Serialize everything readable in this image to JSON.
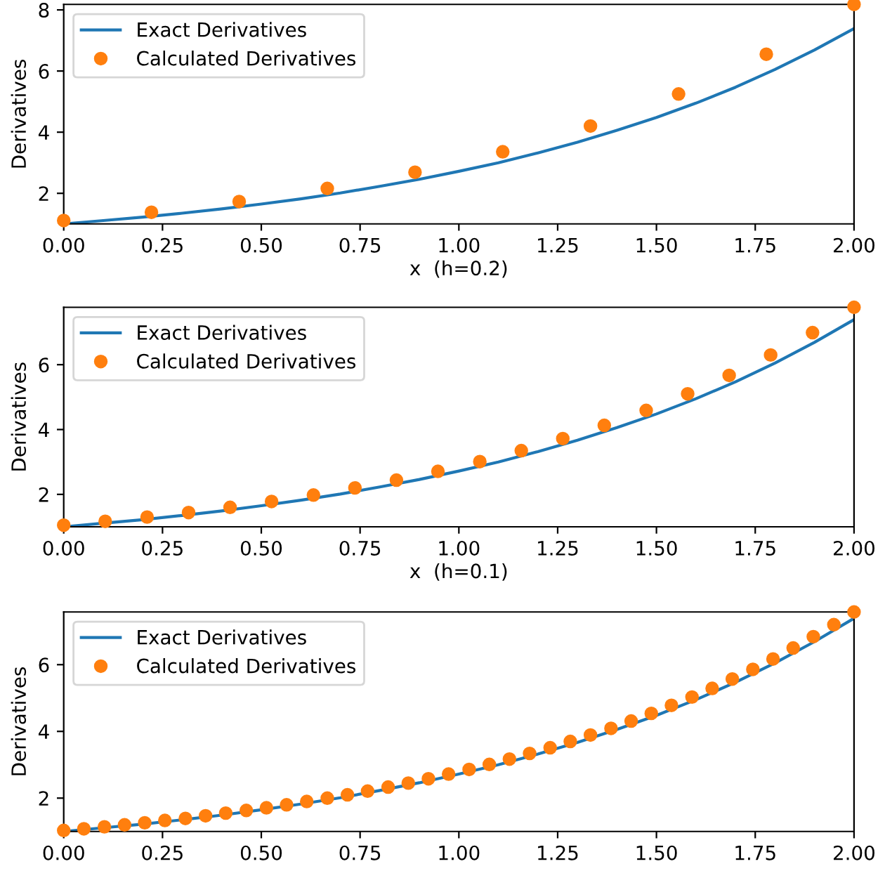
{
  "chart_data": [
    {
      "type": "line",
      "xlabel": "x  (h=0.2)",
      "ylabel": "Derivatives",
      "xlim": [
        0,
        2
      ],
      "ylim": [
        1,
        8.18
      ],
      "xticks": [
        {
          "value": 0,
          "label": "0.00"
        },
        {
          "value": 0.25,
          "label": "0.25"
        },
        {
          "value": 0.5,
          "label": "0.50"
        },
        {
          "value": 0.75,
          "label": "0.75"
        },
        {
          "value": 1,
          "label": "1.00"
        },
        {
          "value": 1.25,
          "label": "1.25"
        },
        {
          "value": 1.5,
          "label": "1.50"
        },
        {
          "value": 1.75,
          "label": "1.75"
        },
        {
          "value": 2,
          "label": "2.00"
        }
      ],
      "yticks": [
        2,
        4,
        6,
        8
      ],
      "legend": "top left",
      "grid": false,
      "series": [
        {
          "name": "Exact Derivatives",
          "color": "#1f77b4",
          "marker": "none",
          "x": [
            0,
            0.1,
            0.2,
            0.3,
            0.4,
            0.5,
            0.6,
            0.7,
            0.8,
            0.9,
            1.0,
            1.1,
            1.2,
            1.3,
            1.4,
            1.5,
            1.6,
            1.7,
            1.8,
            1.9,
            2.0
          ],
          "values": [
            1,
            1.11,
            1.22,
            1.35,
            1.49,
            1.65,
            1.82,
            2.01,
            2.23,
            2.46,
            2.72,
            3.0,
            3.32,
            3.67,
            4.06,
            4.48,
            4.95,
            5.47,
            6.05,
            6.69,
            7.39
          ]
        },
        {
          "name": "Calculated Derivatives",
          "type": "scatter",
          "color": "#ff7f0e",
          "marker": "circle",
          "x": [
            0,
            0.222,
            0.444,
            0.667,
            0.889,
            1.111,
            1.333,
            1.556,
            1.778,
            2.0
          ],
          "values": [
            1.11,
            1.38,
            1.73,
            2.16,
            2.69,
            3.36,
            4.2,
            5.25,
            6.55,
            8.18
          ]
        }
      ]
    },
    {
      "type": "line",
      "xlabel": "x  (h=0.1)",
      "ylabel": "Derivatives",
      "xlim": [
        0,
        2
      ],
      "ylim": [
        1,
        7.77
      ],
      "xticks": [
        {
          "value": 0,
          "label": "0.00"
        },
        {
          "value": 0.25,
          "label": "0.25"
        },
        {
          "value": 0.5,
          "label": "0.50"
        },
        {
          "value": 0.75,
          "label": "0.75"
        },
        {
          "value": 1,
          "label": "1.00"
        },
        {
          "value": 1.25,
          "label": "1.25"
        },
        {
          "value": 1.5,
          "label": "1.50"
        },
        {
          "value": 1.75,
          "label": "1.75"
        },
        {
          "value": 2,
          "label": "2.00"
        }
      ],
      "yticks": [
        2,
        4,
        6
      ],
      "legend": "top left",
      "grid": false,
      "series": [
        {
          "name": "Exact Derivatives",
          "color": "#1f77b4",
          "marker": "none",
          "x": [
            0,
            0.1,
            0.2,
            0.3,
            0.4,
            0.5,
            0.6,
            0.7,
            0.8,
            0.9,
            1.0,
            1.1,
            1.2,
            1.3,
            1.4,
            1.5,
            1.6,
            1.7,
            1.8,
            1.9,
            2.0
          ],
          "values": [
            1,
            1.11,
            1.22,
            1.35,
            1.49,
            1.65,
            1.82,
            2.01,
            2.23,
            2.46,
            2.72,
            3.0,
            3.32,
            3.67,
            4.06,
            4.48,
            4.95,
            5.47,
            6.05,
            6.69,
            7.39
          ]
        },
        {
          "name": "Calculated Derivatives",
          "type": "scatter",
          "color": "#ff7f0e",
          "marker": "circle",
          "x": [
            0,
            0.105,
            0.211,
            0.316,
            0.421,
            0.526,
            0.632,
            0.737,
            0.842,
            0.947,
            1.053,
            1.158,
            1.263,
            1.368,
            1.474,
            1.579,
            1.684,
            1.789,
            1.895,
            2.0
          ],
          "values": [
            1.05,
            1.17,
            1.3,
            1.44,
            1.6,
            1.78,
            1.98,
            2.2,
            2.44,
            2.71,
            3.01,
            3.35,
            3.72,
            4.13,
            4.59,
            5.1,
            5.67,
            6.3,
            6.99,
            7.77
          ]
        }
      ]
    },
    {
      "type": "line",
      "ylabel": "Derivatives",
      "xlim": [
        0,
        2
      ],
      "ylim": [
        1,
        7.58
      ],
      "xticks": [
        {
          "value": 0,
          "label": "0.00"
        },
        {
          "value": 0.25,
          "label": "0.25"
        },
        {
          "value": 0.5,
          "label": "0.50"
        },
        {
          "value": 0.75,
          "label": "0.75"
        },
        {
          "value": 1,
          "label": "1.00"
        },
        {
          "value": 1.25,
          "label": "1.25"
        },
        {
          "value": 1.5,
          "label": "1.50"
        },
        {
          "value": 1.75,
          "label": "1.75"
        },
        {
          "value": 2,
          "label": "2.00"
        }
      ],
      "yticks": [
        2,
        4,
        6
      ],
      "legend": "top left",
      "grid": false,
      "series": [
        {
          "name": "Exact Derivatives",
          "color": "#1f77b4",
          "marker": "none",
          "x": [
            0,
            0.1,
            0.2,
            0.3,
            0.4,
            0.5,
            0.6,
            0.7,
            0.8,
            0.9,
            1.0,
            1.1,
            1.2,
            1.3,
            1.4,
            1.5,
            1.6,
            1.7,
            1.8,
            1.9,
            2.0
          ],
          "values": [
            1,
            1.11,
            1.22,
            1.35,
            1.49,
            1.65,
            1.82,
            2.01,
            2.23,
            2.46,
            2.72,
            3.0,
            3.32,
            3.67,
            4.06,
            4.48,
            4.95,
            5.47,
            6.05,
            6.69,
            7.39
          ]
        },
        {
          "name": "Calculated Derivatives",
          "type": "scatter",
          "color": "#ff7f0e",
          "marker": "circle",
          "x": [
            0,
            0.051,
            0.103,
            0.154,
            0.205,
            0.256,
            0.308,
            0.359,
            0.41,
            0.462,
            0.513,
            0.564,
            0.615,
            0.667,
            0.718,
            0.769,
            0.821,
            0.872,
            0.923,
            0.974,
            1.026,
            1.077,
            1.128,
            1.179,
            1.231,
            1.282,
            1.333,
            1.385,
            1.436,
            1.487,
            1.538,
            1.59,
            1.641,
            1.692,
            1.744,
            1.795,
            1.846,
            1.897,
            1.949,
            2.0
          ],
          "values": [
            1.03,
            1.08,
            1.14,
            1.2,
            1.26,
            1.33,
            1.39,
            1.47,
            1.55,
            1.63,
            1.71,
            1.8,
            1.9,
            2.0,
            2.1,
            2.21,
            2.33,
            2.45,
            2.58,
            2.72,
            2.86,
            3.01,
            3.17,
            3.34,
            3.51,
            3.7,
            3.89,
            4.09,
            4.31,
            4.54,
            4.78,
            5.03,
            5.29,
            5.57,
            5.86,
            6.17,
            6.5,
            6.84,
            7.2,
            7.58
          ]
        }
      ]
    }
  ]
}
